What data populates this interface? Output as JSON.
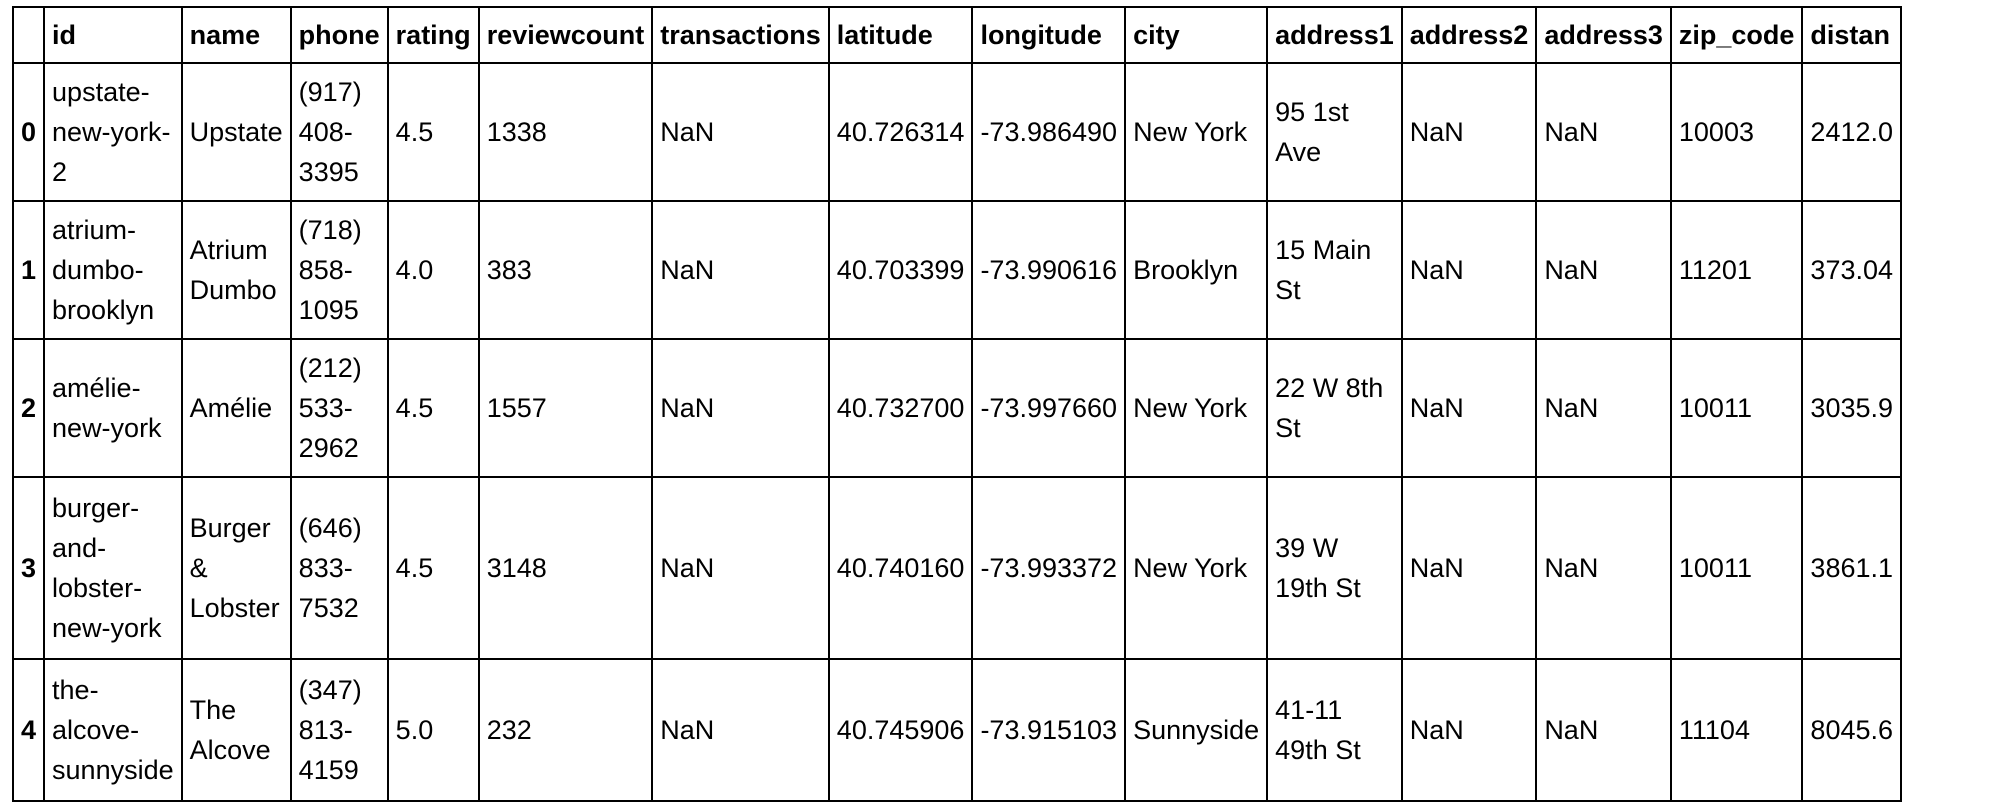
{
  "table": {
    "columns": [
      "",
      "id",
      "name",
      "phone",
      "rating",
      "reviewcount",
      "transactions",
      "latitude",
      "longitude",
      "city",
      "address1",
      "address2",
      "address3",
      "zip_code",
      "distan"
    ],
    "rows": [
      {
        "index": "0",
        "cells": [
          "upstate-new-york-2",
          "Upstate",
          "(917) 408-3395",
          "4.5",
          "1338",
          "NaN",
          "40.726314",
          "-73.986490",
          "New York",
          "95 1st Ave",
          "NaN",
          "NaN",
          "10003",
          "2412.0"
        ]
      },
      {
        "index": "1",
        "cells": [
          "atrium-dumbo-brooklyn",
          "Atrium Dumbo",
          "(718) 858-1095",
          "4.0",
          "383",
          "NaN",
          "40.703399",
          "-73.990616",
          "Brooklyn",
          "15 Main St",
          "NaN",
          "NaN",
          "11201",
          "373.04"
        ]
      },
      {
        "index": "2",
        "cells": [
          "amélie-new-york",
          "Amélie",
          "(212) 533-2962",
          "4.5",
          "1557",
          "NaN",
          "40.732700",
          "-73.997660",
          "New York",
          "22 W 8th St",
          "NaN",
          "NaN",
          "10011",
          "3035.9"
        ]
      },
      {
        "index": "3",
        "cells": [
          "burger-and-lobster-new-york",
          "Burger & Lobster",
          "(646) 833-7532",
          "4.5",
          "3148",
          "NaN",
          "40.740160",
          "-73.993372",
          "New York",
          "39 W 19th St",
          "NaN",
          "NaN",
          "10011",
          "3861.1"
        ]
      },
      {
        "index": "4",
        "cells": [
          "the-alcove-sunnyside",
          "The Alcove",
          "(347) 813-4159",
          "5.0",
          "232",
          "NaN",
          "40.745906",
          "-73.915103",
          "Sunnyside",
          "41-11 49th St",
          "NaN",
          "NaN",
          "11104",
          "8045.6"
        ]
      }
    ]
  }
}
